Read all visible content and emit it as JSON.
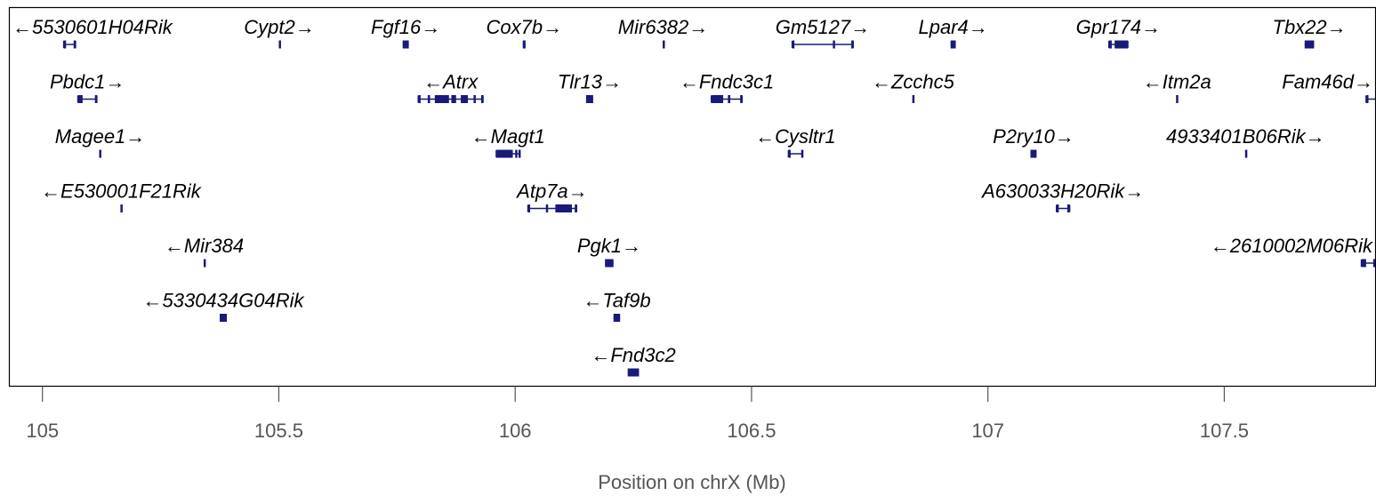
{
  "chart_data": {
    "type": "gene-track",
    "xlabel": "Position on chrX (Mb)",
    "xlim": [
      104.93,
      107.82
    ],
    "xticks": [
      105,
      105.5,
      106,
      106.5,
      107,
      107.5
    ],
    "xtick_labels": [
      "105",
      "105.5",
      "106",
      "106.5",
      "107",
      "107.5"
    ],
    "gene_color": "#1a1a7a",
    "genes": [
      {
        "name": "5530601H04Rik",
        "strand": "-",
        "row": 0,
        "start": 105.045,
        "end": 105.07,
        "exons": [
          [
            105.045,
            105.05
          ],
          [
            105.066,
            105.07
          ]
        ]
      },
      {
        "name": "Cypt2",
        "strand": "+",
        "row": 0,
        "start": 105.5,
        "end": 105.502,
        "exons": []
      },
      {
        "name": "Fgf16",
        "strand": "+",
        "row": 0,
        "start": 105.762,
        "end": 105.775,
        "exons": []
      },
      {
        "name": "Cox7b",
        "strand": "+",
        "row": 0,
        "start": 106.016,
        "end": 106.022,
        "exons": []
      },
      {
        "name": "Mir6382",
        "strand": "+",
        "row": 0,
        "start": 106.312,
        "end": 106.314,
        "exons": []
      },
      {
        "name": "Gm5127",
        "strand": "+",
        "row": 0,
        "start": 106.586,
        "end": 106.715,
        "exons": [
          [
            106.586,
            106.588
          ],
          [
            106.672,
            106.676
          ],
          [
            106.711,
            106.715
          ]
        ]
      },
      {
        "name": "Lpar4",
        "strand": "+",
        "row": 0,
        "start": 106.921,
        "end": 106.932,
        "exons": []
      },
      {
        "name": "Gpr174",
        "strand": "+",
        "row": 0,
        "start": 107.256,
        "end": 107.296,
        "exons": [
          [
            107.256,
            107.262
          ],
          [
            107.268,
            107.296
          ]
        ]
      },
      {
        "name": "Tbx22",
        "strand": "+",
        "row": 0,
        "start": 107.67,
        "end": 107.69,
        "exons": []
      },
      {
        "name": "Pbdc1",
        "strand": "+",
        "row": 1,
        "start": 105.075,
        "end": 105.115,
        "exons": [
          [
            105.075,
            105.085
          ],
          [
            105.111,
            105.115
          ]
        ]
      },
      {
        "name": "Atrx",
        "strand": "-",
        "row": 1,
        "start": 105.795,
        "end": 105.932,
        "exons": [
          [
            105.795,
            105.8
          ],
          [
            105.815,
            105.82
          ],
          [
            105.83,
            105.86
          ],
          [
            105.865,
            105.875
          ],
          [
            105.885,
            105.9
          ],
          [
            105.912,
            105.915
          ],
          [
            105.928,
            105.932
          ]
        ]
      },
      {
        "name": "Tlr13",
        "strand": "+",
        "row": 1,
        "start": 106.15,
        "end": 106.165,
        "exons": []
      },
      {
        "name": "Fndc3c1",
        "strand": "-",
        "row": 1,
        "start": 106.415,
        "end": 106.48,
        "exons": [
          [
            106.415,
            106.44
          ],
          [
            106.45,
            106.455
          ],
          [
            106.476,
            106.48
          ]
        ]
      },
      {
        "name": "Zcchc5",
        "strand": "-",
        "row": 1,
        "start": 106.84,
        "end": 106.843,
        "exons": []
      },
      {
        "name": "Itm2a",
        "strand": "-",
        "row": 1,
        "start": 107.398,
        "end": 107.402,
        "exons": []
      },
      {
        "name": "Fam46d",
        "strand": "+",
        "row": 1,
        "start": 107.8,
        "end": 107.835,
        "exons": [
          [
            107.8,
            107.805
          ],
          [
            107.825,
            107.835
          ]
        ]
      },
      {
        "name": "Magee1",
        "strand": "+",
        "row": 2,
        "start": 105.12,
        "end": 105.124,
        "exons": []
      },
      {
        "name": "Magt1",
        "strand": "-",
        "row": 2,
        "start": 105.96,
        "end": 106.01,
        "exons": [
          [
            105.96,
            105.995
          ],
          [
            106.0,
            106.003
          ],
          [
            106.007,
            106.01
          ]
        ]
      },
      {
        "name": "Cysltr1",
        "strand": "-",
        "row": 2,
        "start": 106.578,
        "end": 106.608,
        "exons": [
          [
            106.578,
            106.582
          ],
          [
            106.605,
            106.608
          ]
        ]
      },
      {
        "name": "P2ry10",
        "strand": "+",
        "row": 2,
        "start": 107.09,
        "end": 107.103,
        "exons": []
      },
      {
        "name": "4933401B06Rik",
        "strand": "+",
        "row": 2,
        "start": 107.544,
        "end": 107.546,
        "exons": []
      },
      {
        "name": "E530001F21Rik",
        "strand": "-",
        "row": 3,
        "start": 105.165,
        "end": 105.167,
        "exons": []
      },
      {
        "name": "Atp7a",
        "strand": "+",
        "row": 3,
        "start": 106.027,
        "end": 106.13,
        "exons": [
          [
            106.027,
            106.029
          ],
          [
            106.065,
            106.068
          ],
          [
            106.085,
            106.12
          ],
          [
            106.126,
            106.13
          ]
        ]
      },
      {
        "name": "A630033H20Rik",
        "strand": "+",
        "row": 3,
        "start": 107.145,
        "end": 107.173,
        "exons": [
          [
            107.145,
            107.15
          ],
          [
            107.168,
            107.173
          ]
        ]
      },
      {
        "name": "Mir384",
        "strand": "-",
        "row": 4,
        "start": 105.341,
        "end": 105.343,
        "exons": []
      },
      {
        "name": "Pgk1",
        "strand": "+",
        "row": 4,
        "start": 106.19,
        "end": 106.208,
        "exons": []
      },
      {
        "name": "2610002M06Rik",
        "strand": "-",
        "row": 4,
        "start": 107.79,
        "end": 107.82,
        "exons": [
          [
            107.79,
            107.8
          ],
          [
            107.815,
            107.82
          ]
        ]
      },
      {
        "name": "5330434G04Rik",
        "strand": "-",
        "row": 5,
        "start": 105.375,
        "end": 105.39,
        "exons": []
      },
      {
        "name": "Taf9b",
        "strand": "-",
        "row": 5,
        "start": 106.208,
        "end": 106.222,
        "exons": []
      },
      {
        "name": "Fnd3c2",
        "strand": "-",
        "row": 6,
        "start": 106.238,
        "end": 106.262,
        "exons": []
      }
    ]
  }
}
